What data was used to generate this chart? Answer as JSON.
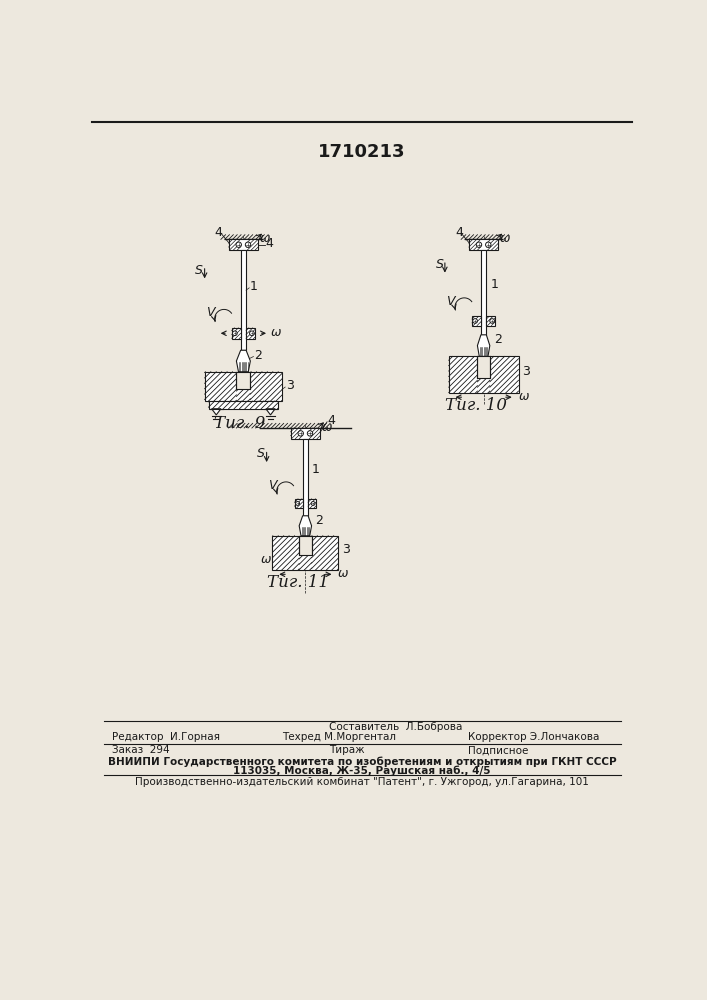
{
  "title": "1710213",
  "bg_color": "#ede8de",
  "fig9_label": "Τиг. 9",
  "fig10_label": "Τиг. 10",
  "fig11_label": "Τиг. 11",
  "footer_sestavitel": "Составитель  Л.Боброва",
  "footer_tekhred": "Техред М.Моргентал",
  "footer_redaktor": "Редактор  И.Горная",
  "footer_korrektor": "Корректор Э.Лончакова",
  "footer_zakaz": "Заказ  294",
  "footer_tirazh": "Тираж",
  "footer_podpisnoe": "Подписное",
  "footer_vniipи": "ВНИИПИ Государственного комитета по изобретениям и открытиям при ГКНТ СССР",
  "footer_addr": "113035, Москва, Ж-35, Раушская наб., 4/5",
  "footer_patent": "Производственно-издательский комбинат \"Патент\", г. Ужгород, ул.Гагарина, 101",
  "line_color": "#1a1a1a"
}
